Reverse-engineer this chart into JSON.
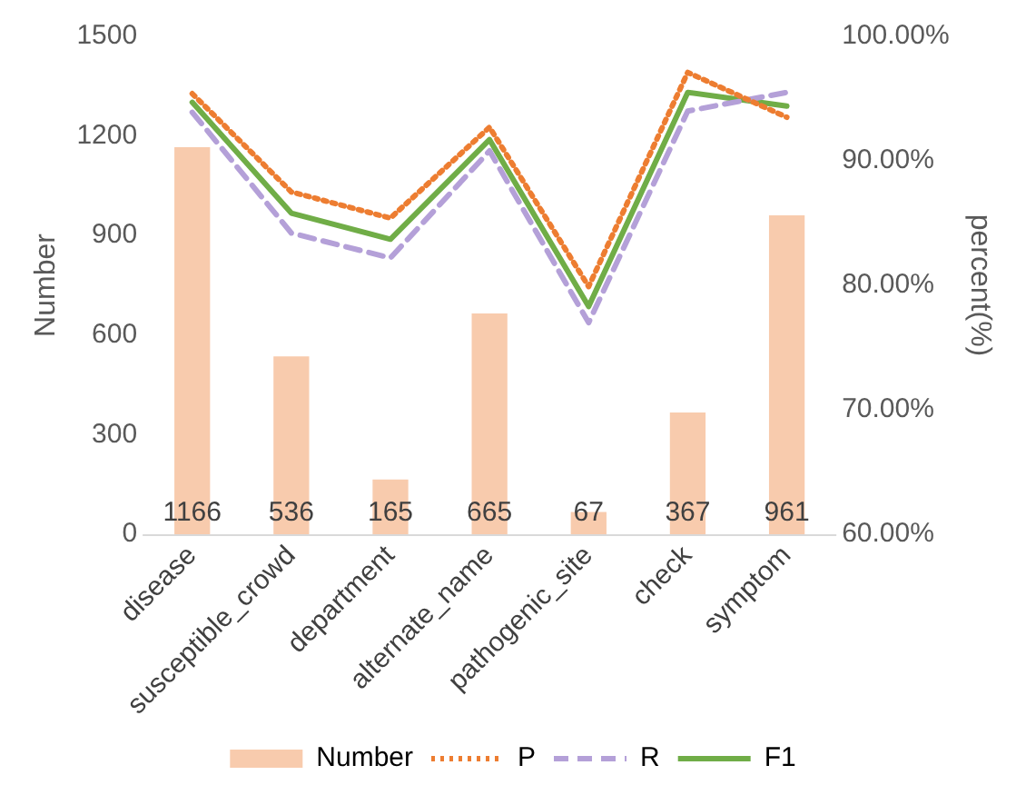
{
  "chart_data": {
    "type": "bar",
    "categories": [
      "disease",
      "susceptible_crowd",
      "department",
      "alternate_name",
      "pathogenic_site",
      "check",
      "symptom"
    ],
    "ylabel": "Number",
    "y2label": "percent(%)",
    "ylim": [
      0,
      1500
    ],
    "yticks": [
      0,
      300,
      600,
      900,
      1200,
      1500
    ],
    "y2lim": [
      60,
      100
    ],
    "y2ticks": [
      {
        "value": 60,
        "label": "60.00%"
      },
      {
        "value": 70,
        "label": "70.00%"
      },
      {
        "value": 80,
        "label": "80.00%"
      },
      {
        "value": 90,
        "label": "90.00%"
      },
      {
        "value": 100,
        "label": "100.00%"
      }
    ],
    "series": [
      {
        "name": "Number",
        "color": "#f8cbad",
        "values": [
          1166,
          536,
          165,
          665,
          67,
          367,
          961
        ],
        "value_labels": [
          "1166",
          "536",
          "165",
          "665",
          "67",
          "367",
          "961"
        ]
      },
      {
        "name": "P",
        "type": "line",
        "axis": "y2",
        "line_style": "dotted",
        "color": "#ed7d31",
        "values": [
          95.4,
          87.5,
          85.4,
          92.7,
          79.9,
          97.1,
          93.5
        ]
      },
      {
        "name": "R",
        "type": "line",
        "axis": "y2",
        "line_style": "dashed",
        "color": "#b4a0d8",
        "values": [
          93.9,
          84.2,
          82.2,
          90.8,
          77.0,
          94.0,
          95.5
        ]
      },
      {
        "name": "F1",
        "type": "line",
        "axis": "y2",
        "line_style": "solid",
        "color": "#70ad47",
        "values": [
          94.7,
          85.8,
          83.7,
          91.7,
          78.3,
          95.5,
          94.4
        ]
      }
    ],
    "grid": false,
    "legend": "bottom",
    "marker": "none"
  }
}
